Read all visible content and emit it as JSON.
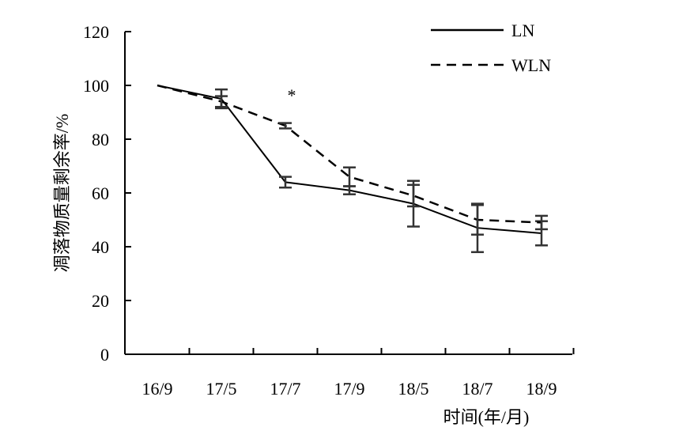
{
  "chart_data": {
    "type": "line",
    "title": "",
    "xlabel": "时间(年/月)",
    "ylabel": "凋落物质量剩余率/%",
    "categories": [
      "16/9",
      "17/5",
      "17/7",
      "17/9",
      "18/5",
      "18/7",
      "18/9"
    ],
    "ylim": [
      0,
      120
    ],
    "yticks": [
      0,
      20,
      40,
      60,
      80,
      100,
      120
    ],
    "grid": false,
    "legend_position": "top-right",
    "series": [
      {
        "name": "LN",
        "style": "solid",
        "values": [
          100,
          95,
          64,
          61,
          56,
          47,
          45
        ],
        "errors": [
          0,
          3.5,
          2,
          1.5,
          8.5,
          9,
          4.5
        ]
      },
      {
        "name": "WLN",
        "style": "dashed",
        "values": [
          100,
          94,
          85,
          66,
          59,
          50,
          49
        ],
        "errors": [
          0,
          2,
          1,
          3.5,
          4,
          5.5,
          2.5
        ]
      }
    ],
    "annotations": [
      {
        "text": "*",
        "category": "17/7",
        "y": 97
      }
    ]
  }
}
